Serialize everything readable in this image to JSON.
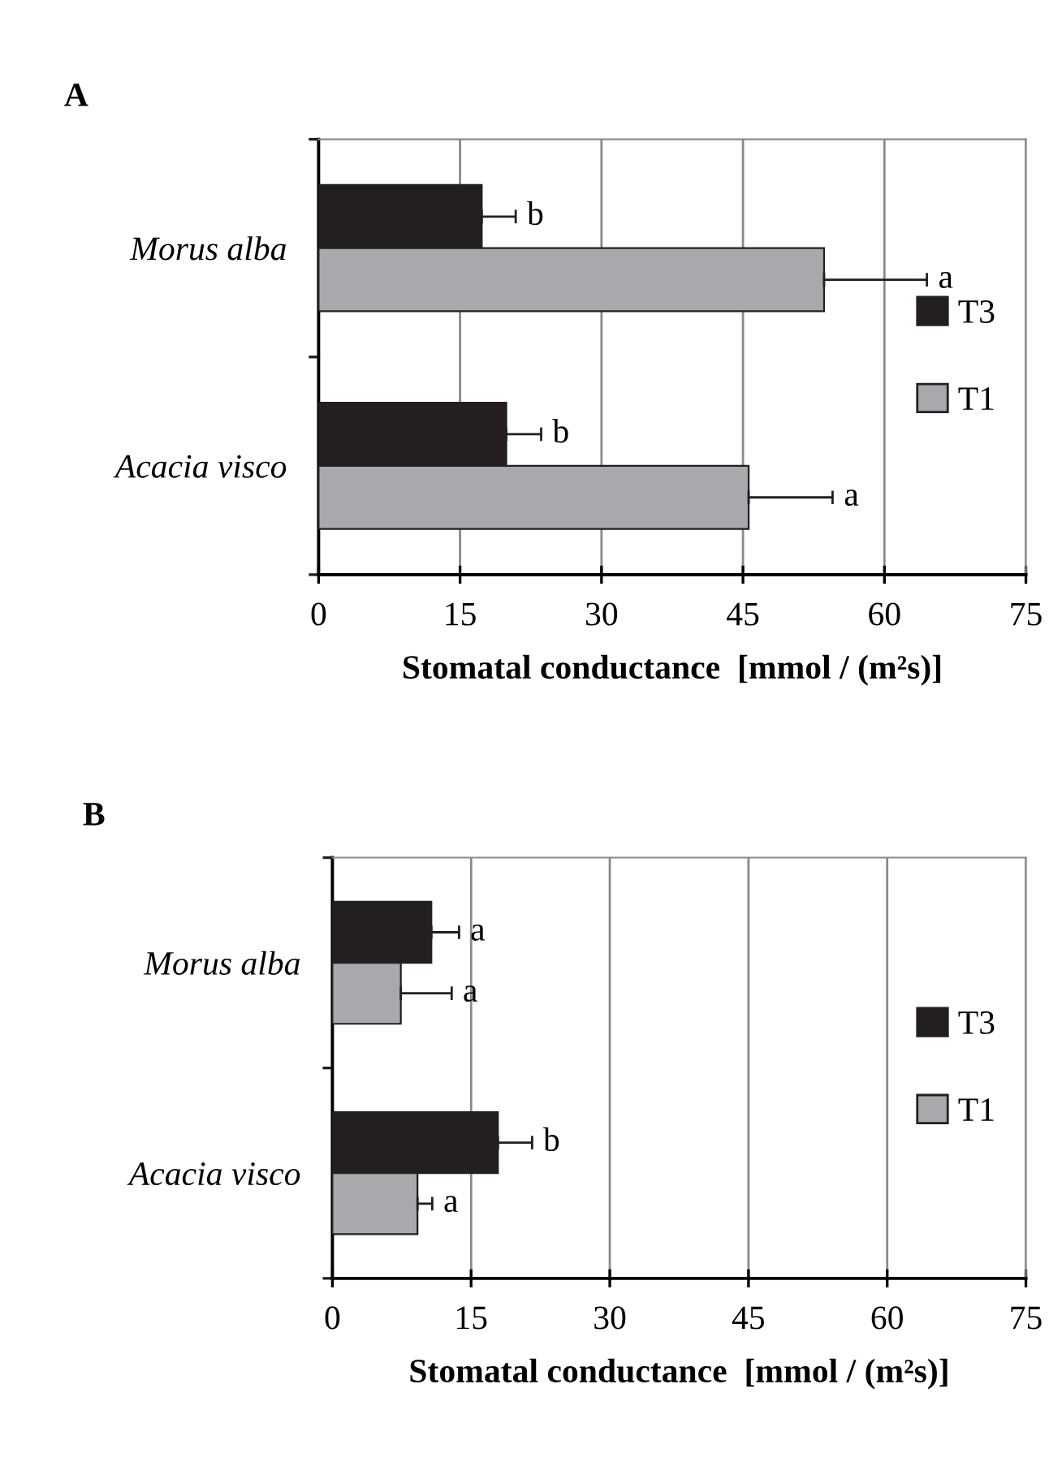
{
  "chart_data": [
    {
      "type": "bar",
      "orientation": "horizontal",
      "title": "A",
      "xlabel": "Stomatal conductance  [mmol / (m²s)]",
      "categories": [
        "Morus alba",
        "Acacia visco"
      ],
      "series": [
        {
          "name": "T3",
          "color": "#231f20",
          "values": [
            17.3,
            19.9
          ],
          "errors": [
            [
              17.3,
              20.9
            ],
            [
              19.9,
              23.6
            ]
          ]
        },
        {
          "name": "T1",
          "color": "#a7a9ac",
          "values": [
            53.6,
            45.6
          ],
          "errors": [
            [
              53.6,
              64.5
            ],
            [
              45.6,
              54.5
            ]
          ]
        }
      ],
      "xlim": [
        0,
        75
      ],
      "xticks": [
        0,
        15,
        30,
        45,
        60,
        75
      ],
      "grid": "x",
      "legend": "right",
      "annotations": [
        "b",
        "a",
        "b",
        "a"
      ]
    },
    {
      "type": "bar",
      "orientation": "horizontal",
      "title": "B",
      "xlabel": "Stomatal conductance  [mmol / (m²s)]",
      "categories": [
        "Morus alba",
        "Acacia visco"
      ],
      "series": [
        {
          "name": "T3",
          "color": "#231f20",
          "values": [
            10.7,
            17.9
          ],
          "errors": [
            [
              10.7,
              13.7
            ],
            [
              17.9,
              21.6
            ]
          ]
        },
        {
          "name": "T1",
          "color": "#a7a9ac",
          "values": [
            7.4,
            9.2
          ],
          "errors": [
            [
              7.4,
              12.9
            ],
            [
              9.2,
              10.8
            ]
          ]
        }
      ],
      "xlim": [
        0,
        75
      ],
      "xticks": [
        0,
        15,
        30,
        45,
        60,
        75
      ],
      "grid": "x",
      "legend": "right",
      "annotations": [
        "a",
        "a",
        "b",
        "a"
      ]
    }
  ]
}
